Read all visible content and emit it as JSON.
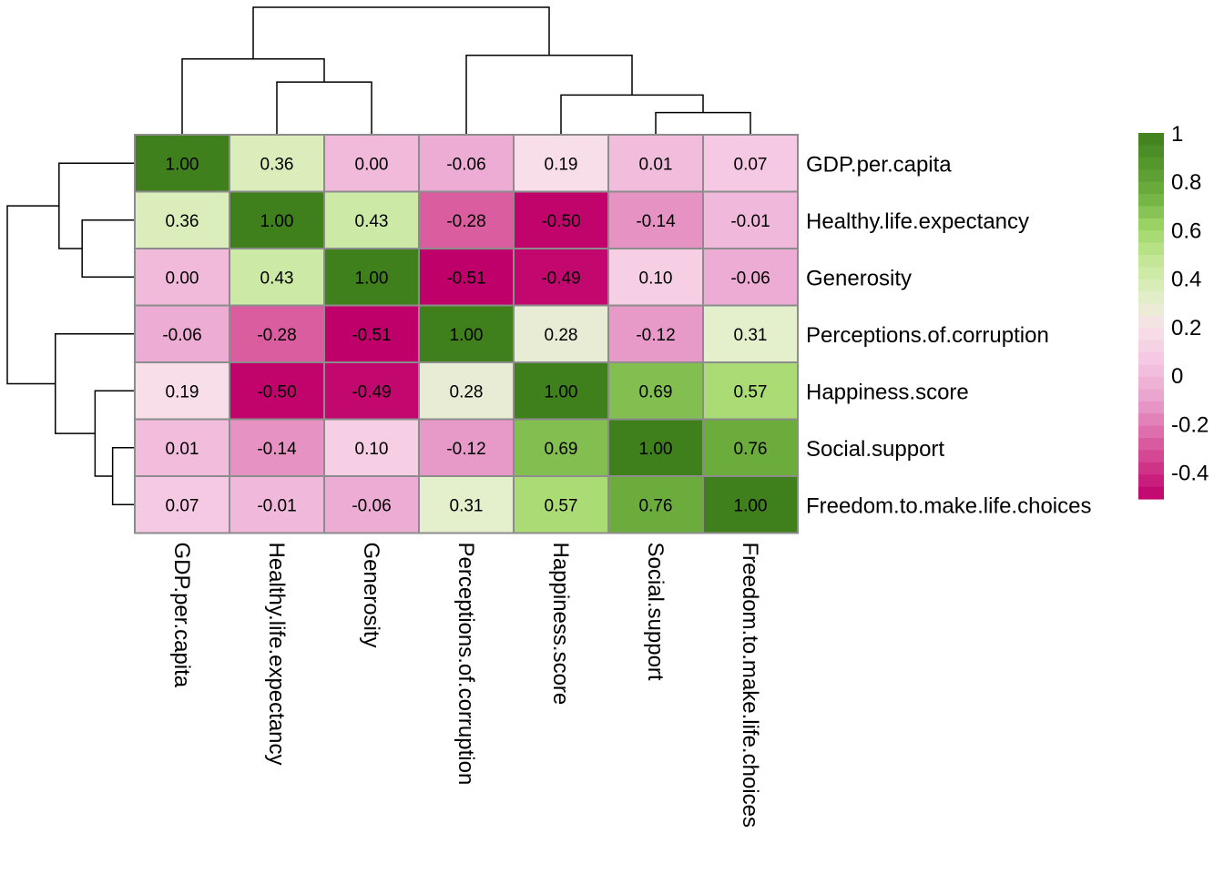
{
  "chart_data": {
    "type": "heatmap",
    "title": "",
    "labels": [
      "GDP.per.capita",
      "Healthy.life.expectancy",
      "Generosity",
      "Perceptions.of.corruption",
      "Happiness.score",
      "Social.support",
      "Freedom.to.make.life.choices"
    ],
    "values": [
      [
        1.0,
        0.36,
        0.0,
        -0.06,
        0.19,
        0.01,
        0.07
      ],
      [
        0.36,
        1.0,
        0.43,
        -0.28,
        -0.5,
        -0.14,
        -0.01
      ],
      [
        0.0,
        0.43,
        1.0,
        -0.51,
        -0.49,
        0.1,
        -0.06
      ],
      [
        -0.06,
        -0.28,
        -0.51,
        1.0,
        0.28,
        -0.12,
        0.31
      ],
      [
        0.19,
        -0.5,
        -0.49,
        0.28,
        1.0,
        0.69,
        0.57
      ],
      [
        0.01,
        -0.14,
        0.1,
        -0.12,
        0.69,
        1.0,
        0.76
      ],
      [
        0.07,
        -0.01,
        -0.06,
        0.31,
        0.57,
        0.76,
        1.0
      ]
    ],
    "cell_labels": [
      [
        "1.00",
        "0.36",
        "0.00",
        "-0.06",
        "0.19",
        "0.01",
        "0.07"
      ],
      [
        "0.36",
        "1.00",
        "0.43",
        "-0.28",
        "-0.50",
        "-0.14",
        "-0.01"
      ],
      [
        "0.00",
        "0.43",
        "1.00",
        "-0.51",
        "-0.49",
        "0.10",
        "-0.06"
      ],
      [
        "-0.06",
        "-0.28",
        "-0.51",
        "1.00",
        "0.28",
        "-0.12",
        "0.31"
      ],
      [
        "0.19",
        "-0.50",
        "-0.49",
        "0.28",
        "1.00",
        "0.69",
        "0.57"
      ],
      [
        "0.01",
        "-0.14",
        "0.10",
        "-0.12",
        "0.69",
        "1.00",
        "0.76"
      ],
      [
        "0.07",
        "-0.01",
        "-0.06",
        "0.31",
        "0.57",
        "0.76",
        "1.00"
      ]
    ],
    "color_scale": {
      "min": -0.51,
      "max": 1.0,
      "stops": [
        {
          "value": -0.51,
          "color": "#c0006a"
        },
        {
          "value": -0.3,
          "color": "#d8559b"
        },
        {
          "value": -0.1,
          "color": "#e9a2cd"
        },
        {
          "value": 0.05,
          "color": "#f5c6e2"
        },
        {
          "value": 0.2,
          "color": "#f7e0e8"
        },
        {
          "value": 0.3,
          "color": "#e6efcf"
        },
        {
          "value": 0.45,
          "color": "#c8e99e"
        },
        {
          "value": 0.6,
          "color": "#a2d86a"
        },
        {
          "value": 0.75,
          "color": "#6dae3e"
        },
        {
          "value": 1.0,
          "color": "#3f7f1c"
        }
      ]
    },
    "legend": {
      "position": "right",
      "ticks": [
        {
          "value": 1.0,
          "label": "1"
        },
        {
          "value": 0.8,
          "label": "0.8"
        },
        {
          "value": 0.6,
          "label": "0.6"
        },
        {
          "value": 0.4,
          "label": "0.4"
        },
        {
          "value": 0.2,
          "label": "0.2"
        },
        {
          "value": 0.0,
          "label": "0"
        },
        {
          "value": -0.2,
          "label": "-0.2"
        },
        {
          "value": -0.4,
          "label": "-0.4"
        }
      ]
    },
    "dendrogram": {
      "merges": [
        {
          "a": 5,
          "b": 6,
          "height": 0.24
        },
        {
          "a": 1,
          "b": 2,
          "height": 0.57
        },
        {
          "a": 4,
          "b": [
            5,
            6
          ],
          "height": 0.43
        },
        {
          "a": 0,
          "b": [
            1,
            2
          ],
          "height": 0.82
        },
        {
          "a": 3,
          "b": [
            4,
            5,
            6
          ],
          "height": 0.86
        },
        {
          "a": [
            0,
            1,
            2
          ],
          "b": [
            3,
            4,
            5,
            6
          ],
          "height": 1.38
        }
      ]
    }
  }
}
